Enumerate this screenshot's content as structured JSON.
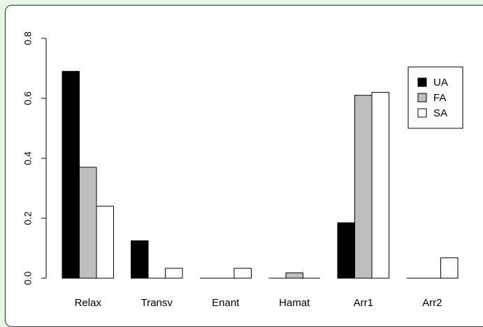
{
  "chart_data": {
    "type": "bar",
    "categories": [
      "Relax",
      "Transv",
      "Enant",
      "Hamat",
      "Arr1",
      "Arr2"
    ],
    "series": [
      {
        "name": "UA",
        "values": [
          0.69,
          0.125,
          0.0,
          0.0,
          0.185,
          0.0
        ],
        "color": "#000000"
      },
      {
        "name": "FA",
        "values": [
          0.37,
          0.0,
          0.0,
          0.018,
          0.61,
          0.0
        ],
        "color": "#bebebe"
      },
      {
        "name": "SA",
        "values": [
          0.24,
          0.033,
          0.033,
          0.0,
          0.62,
          0.068
        ],
        "color": "#ffffff"
      }
    ],
    "yticks": [
      "0.0",
      "0.2",
      "0.4",
      "0.6",
      "0.8"
    ],
    "ylim": [
      0,
      0.8
    ],
    "legend_position": "top-right",
    "grid": false
  }
}
